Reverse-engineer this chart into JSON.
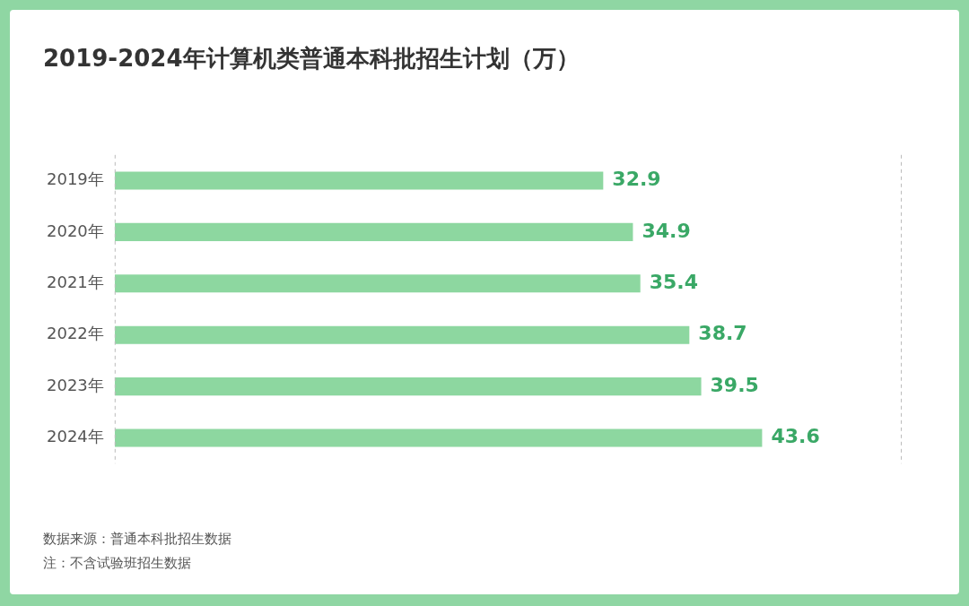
{
  "chart_data": {
    "type": "bar",
    "orientation": "horizontal",
    "title": "2019-2024年计算机类普通本科批招生计划（万）",
    "categories": [
      "2019年",
      "2020年",
      "2021年",
      "2022年",
      "2023年",
      "2024年"
    ],
    "values": [
      32.9,
      34.9,
      35.4,
      38.7,
      39.5,
      43.6
    ],
    "color": "#8dd7a0",
    "xlim": [
      0,
      53
    ],
    "tick_labels": "y",
    "data_labels": true,
    "annotations": [
      "数据来源：普通本科批招生数据",
      "注：不含试验班招生数据"
    ]
  }
}
